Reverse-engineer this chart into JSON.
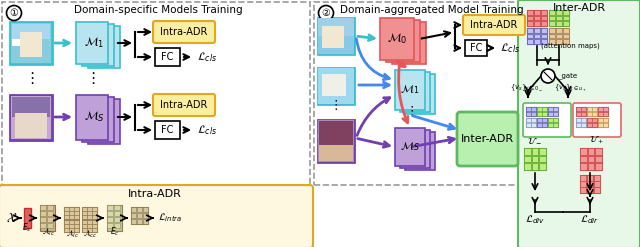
{
  "fig_width": 6.4,
  "fig_height": 2.47,
  "dpi": 100,
  "bg_white": "#ffffff",
  "cyan": "#3bbfcf",
  "cyan_light": "#a8dce8",
  "cyan_mid": "#7dd0e0",
  "purple": "#7040b0",
  "purple_light": "#b090d8",
  "red_block": "#e05858",
  "red_light": "#f0a0a0",
  "green_box": "#60b860",
  "green_bg": "#e8f8e8",
  "gold_box": "#e0a820",
  "gold_bg": "#fceea0",
  "yellow_bg": "#fff8e0",
  "gray_dash": "#999999",
  "panel1_title": "Domain-specific Models Training",
  "panel2_title": "Domain-aggregated Model Training",
  "panel3_title": "Inter-ADR",
  "intra_title": "Intra-ADR"
}
